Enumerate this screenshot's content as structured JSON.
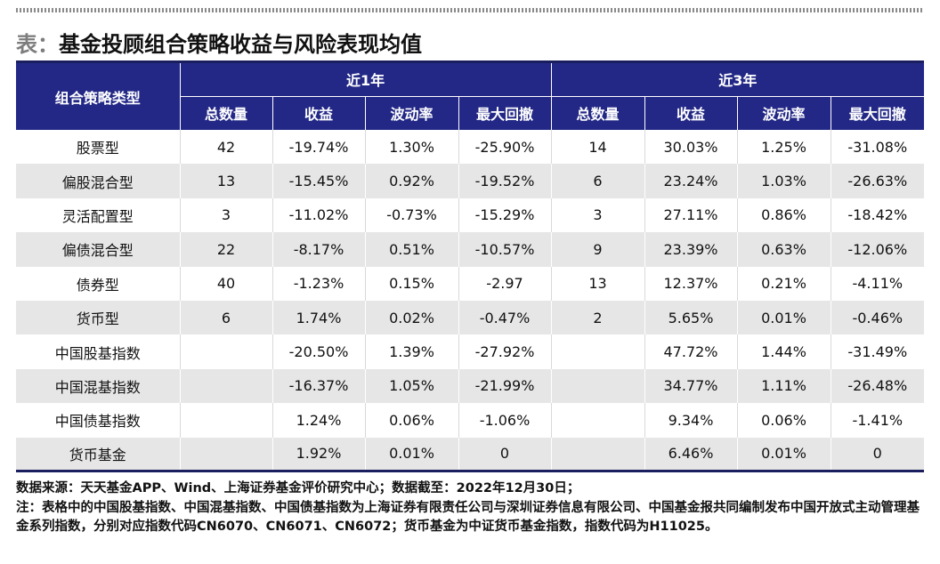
{
  "title": {
    "prefix": "表：",
    "text": "基金投顾组合策略收益与风险表现均值"
  },
  "table": {
    "row_header": "组合策略类型",
    "groups": [
      "近1年",
      "近3年"
    ],
    "subcolumns": [
      "总数量",
      "收益",
      "波动率",
      "最大回撤"
    ],
    "rows": [
      {
        "type": "股票型",
        "y1": [
          "42",
          "-19.74%",
          "1.30%",
          "-25.90%"
        ],
        "y3": [
          "14",
          "30.03%",
          "1.25%",
          "-31.08%"
        ]
      },
      {
        "type": "偏股混合型",
        "y1": [
          "13",
          "-15.45%",
          "0.92%",
          "-19.52%"
        ],
        "y3": [
          "6",
          "23.24%",
          "1.03%",
          "-26.63%"
        ]
      },
      {
        "type": "灵活配置型",
        "y1": [
          "3",
          "-11.02%",
          "-0.73%",
          "-15.29%"
        ],
        "y3": [
          "3",
          "27.11%",
          "0.86%",
          "-18.42%"
        ]
      },
      {
        "type": "偏债混合型",
        "y1": [
          "22",
          "-8.17%",
          "0.51%",
          "-10.57%"
        ],
        "y3": [
          "9",
          "23.39%",
          "0.63%",
          "-12.06%"
        ]
      },
      {
        "type": "债券型",
        "y1": [
          "40",
          "-1.23%",
          "0.15%",
          "-2.97"
        ],
        "y3": [
          "13",
          "12.37%",
          "0.21%",
          "-4.11%"
        ]
      },
      {
        "type": "货币型",
        "y1": [
          "6",
          "1.74%",
          "0.02%",
          "-0.47%"
        ],
        "y3": [
          "2",
          "5.65%",
          "0.01%",
          "-0.46%"
        ]
      },
      {
        "type": "中国股基指数",
        "y1": [
          "",
          "-20.50%",
          "1.39%",
          "-27.92%"
        ],
        "y3": [
          "",
          "47.72%",
          "1.44%",
          "-31.49%"
        ]
      },
      {
        "type": "中国混基指数",
        "y1": [
          "",
          "-16.37%",
          "1.05%",
          "-21.99%"
        ],
        "y3": [
          "",
          "34.77%",
          "1.11%",
          "-26.48%"
        ]
      },
      {
        "type": "中国债基指数",
        "y1": [
          "",
          "1.24%",
          "0.06%",
          "-1.06%"
        ],
        "y3": [
          "",
          "9.34%",
          "0.06%",
          "-1.41%"
        ]
      },
      {
        "type": "货币基金",
        "y1": [
          "",
          "1.92%",
          "0.01%",
          "0"
        ],
        "y3": [
          "",
          "6.46%",
          "0.01%",
          "0"
        ]
      }
    ]
  },
  "notes": {
    "source": "数据来源：天天基金APP、Wind、上海证券基金评价研究中心；数据截至：2022年12月30日；",
    "note": "注：表格中的中国股基指数、中国混基指数、中国债基指数为上海证券有限责任公司与深圳证券信息有限公司、中国基金报共同编制发布中国开放式主动管理基金系列指数，分别对应指数代码CN6070、CN6071、CN6072；货币基金为中证货币基金指数，指数代码为H11025。"
  },
  "colors": {
    "header_bg": "#232886",
    "stripe": "#e6e6e6",
    "rule": "#1b1e5e"
  }
}
